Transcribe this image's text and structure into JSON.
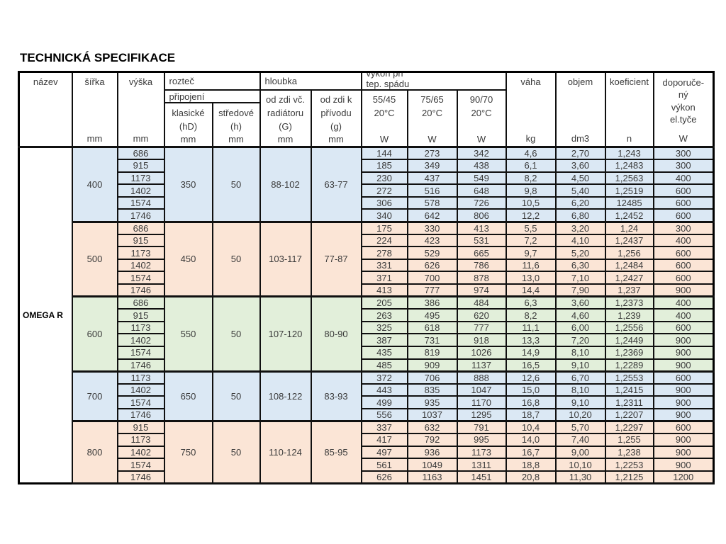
{
  "title": "TECHNICKÁ SPECIFIKACE",
  "colors": {
    "blue": "#dbe8f4",
    "peach": "#fbe5d6",
    "green": "#e2efda",
    "border": "#101010"
  },
  "table": {
    "product": "OMEGA R",
    "header": {
      "nazev": "název",
      "sirka": "šířka",
      "vyska": "výška",
      "roztec": "rozteč",
      "pripojeni": "připojení",
      "klasicke_lines": [
        "klasické",
        "(hD)"
      ],
      "stredove_lines": [
        "středové",
        "(h)"
      ],
      "hloubka": "hloubka",
      "od_zdi_vc_lines": [
        "od zdi  vč.",
        "radiátoru",
        "(G)"
      ],
      "od_zdi_k_lines": [
        "od zdi  k",
        "přívodu",
        "(g)"
      ],
      "vykon_lines": [
        "výkon při",
        "tep.  spádu"
      ],
      "temp_cols": [
        {
          "lines": [
            "55/45",
            "20°C"
          ]
        },
        {
          "lines": [
            "75/65",
            "20°C"
          ]
        },
        {
          "lines": [
            "90/70",
            "20°C"
          ]
        }
      ],
      "vaha": "váha",
      "objem": "objem",
      "koeficient": "koeficient",
      "doporuceny_lines": [
        "doporuče-",
        "ný",
        "výkon",
        "el.tyče"
      ],
      "units": {
        "mm": "mm",
        "w": "W",
        "kg": "kg",
        "dm3": "dm3",
        "n": "n",
        "blank": ""
      }
    },
    "columns": [
      "výška",
      "55/45",
      "75/65",
      "90/70",
      "váha",
      "objem",
      "koeficient",
      "doporučený výkon"
    ],
    "groups": [
      {
        "sirka": "400",
        "klasicke": "350",
        "stredove": "50",
        "hloubka_g": "88-102",
        "hloubka_g2": "63-77",
        "color": "blue",
        "rows": [
          [
            "686",
            "144",
            "273",
            "342",
            "4,6",
            "2,70",
            "1,243",
            "300"
          ],
          [
            "915",
            "185",
            "349",
            "438",
            "6,1",
            "3,60",
            "1,2483",
            "300"
          ],
          [
            "1173",
            "230",
            "437",
            "549",
            "8,2",
            "4,50",
            "1,2563",
            "400"
          ],
          [
            "1402",
            "272",
            "516",
            "648",
            "9,8",
            "5,40",
            "1,2519",
            "600"
          ],
          [
            "1574",
            "306",
            "578",
            "726",
            "10,5",
            "6,20",
            "12485",
            "600"
          ],
          [
            "1746",
            "340",
            "642",
            "806",
            "12,2",
            "6,80",
            "1,2452",
            "600"
          ]
        ]
      },
      {
        "sirka": "500",
        "klasicke": "450",
        "stredove": "50",
        "hloubka_g": "103-117",
        "hloubka_g2": "77-87",
        "color": "peach",
        "rows": [
          [
            "686",
            "175",
            "330",
            "413",
            "5,5",
            "3,20",
            "1,24",
            "300"
          ],
          [
            "915",
            "224",
            "423",
            "531",
            "7,2",
            "4,10",
            "1,2437",
            "400"
          ],
          [
            "1173",
            "278",
            "529",
            "665",
            "9,7",
            "5,20",
            "1,256",
            "600"
          ],
          [
            "1402",
            "331",
            "626",
            "786",
            "11,6",
            "6,30",
            "1,2484",
            "600"
          ],
          [
            "1574",
            "371",
            "700",
            "878",
            "13,0",
            "7,10",
            "1,2427",
            "600"
          ],
          [
            "1746",
            "413",
            "777",
            "974",
            "14,4",
            "7,90",
            "1,237",
            "900"
          ]
        ]
      },
      {
        "sirka": "600",
        "klasicke": "550",
        "stredove": "50",
        "hloubka_g": "107-120",
        "hloubka_g2": "80-90",
        "color": "green",
        "rows": [
          [
            "686",
            "205",
            "386",
            "484",
            "6,3",
            "3,60",
            "1,2373",
            "400"
          ],
          [
            "915",
            "263",
            "495",
            "620",
            "8,2",
            "4,60",
            "1,239",
            "400"
          ],
          [
            "1173",
            "325",
            "618",
            "777",
            "11,1",
            "6,00",
            "1,2556",
            "600"
          ],
          [
            "1402",
            "387",
            "731",
            "918",
            "13,3",
            "7,20",
            "1,2449",
            "900"
          ],
          [
            "1574",
            "435",
            "819",
            "1026",
            "14,9",
            "8,10",
            "1,2369",
            "900"
          ],
          [
            "1746",
            "485",
            "909",
            "1137",
            "16,5",
            "9,10",
            "1,2289",
            "900"
          ]
        ]
      },
      {
        "sirka": "700",
        "klasicke": "650",
        "stredove": "50",
        "hloubka_g": "108-122",
        "hloubka_g2": "83-93",
        "color": "blue",
        "rows": [
          [
            "1173",
            "372",
            "706",
            "888",
            "12,6",
            "6,70",
            "1,2553",
            "600"
          ],
          [
            "1402",
            "443",
            "835",
            "1047",
            "15,0",
            "8,10",
            "1,2415",
            "900"
          ],
          [
            "1574",
            "499",
            "935",
            "1170",
            "16,8",
            "9,10",
            "1,2311",
            "900"
          ],
          [
            "1746",
            "556",
            "1037",
            "1295",
            "18,7",
            "10,20",
            "1,2207",
            "900"
          ]
        ]
      },
      {
        "sirka": "800",
        "klasicke": "750",
        "stredove": "50",
        "hloubka_g": "110-124",
        "hloubka_g2": "85-95",
        "color": "peach",
        "rows": [
          [
            "915",
            "337",
            "632",
            "791",
            "10,4",
            "5,70",
            "1,2297",
            "600"
          ],
          [
            "1173",
            "417",
            "792",
            "995",
            "14,0",
            "7,40",
            "1,255",
            "900"
          ],
          [
            "1402",
            "497",
            "936",
            "1173",
            "16,7",
            "9,00",
            "1,238",
            "900"
          ],
          [
            "1574",
            "561",
            "1049",
            "1311",
            "18,8",
            "10,10",
            "1,2253",
            "900"
          ],
          [
            "1746",
            "626",
            "1163",
            "1451",
            "20,8",
            "11,30",
            "1,2125",
            "1200"
          ]
        ]
      }
    ]
  }
}
